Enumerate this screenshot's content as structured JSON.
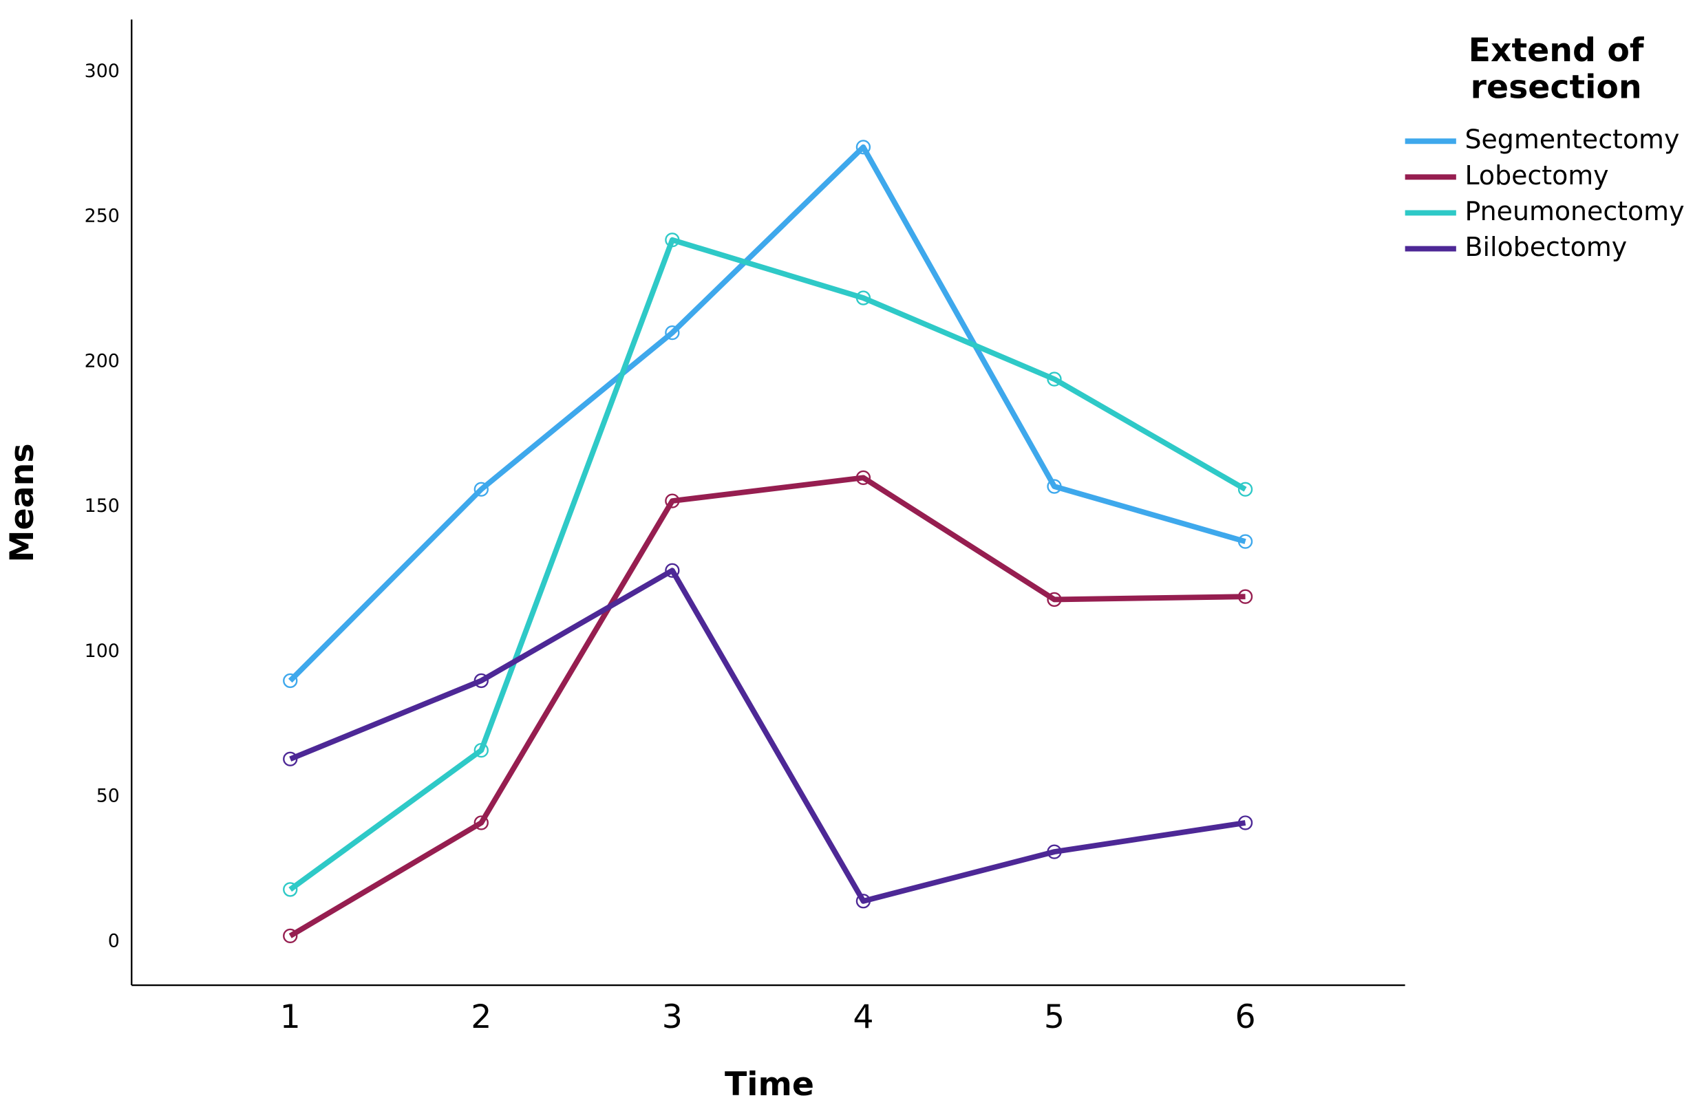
{
  "chart_data": {
    "type": "line",
    "x_label": "Time",
    "y_label": "Means",
    "legend_title": "Extend of\nresection",
    "legend_position": "right",
    "categories": [
      "1",
      "2",
      "3",
      "4",
      "5",
      "6"
    ],
    "series": [
      {
        "name": "Segmentectomy",
        "color": "#3ea8ec",
        "values": [
          90,
          156,
          210,
          274,
          157,
          138
        ]
      },
      {
        "name": "Lobectomy",
        "color": "#961e50",
        "values": [
          2,
          41,
          152,
          160,
          118,
          119
        ]
      },
      {
        "name": "Pneumonectomy",
        "color": "#2ec9c7",
        "values": [
          18,
          66,
          242,
          222,
          194,
          156
        ]
      },
      {
        "name": "Bilobectomy",
        "color": "#4d2896",
        "values": [
          63,
          90,
          128,
          14,
          31,
          41
        ]
      }
    ],
    "ylim": [
      -15,
      318
    ],
    "yticks": [
      0,
      50,
      100,
      150,
      200,
      250,
      300
    ],
    "grid": false
  }
}
